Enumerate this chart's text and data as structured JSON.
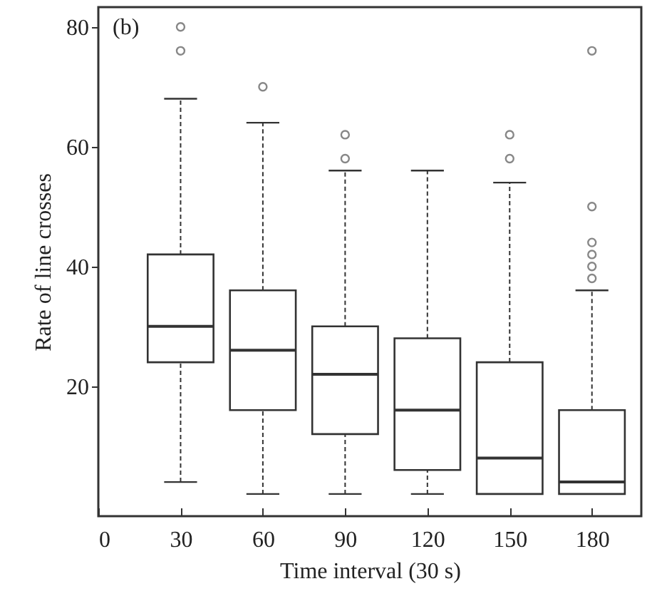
{
  "chart_data": {
    "type": "box",
    "xlabel": "Time interval (30 s)",
    "ylabel": "Rate of line crosses",
    "annotations": [
      "(b)"
    ],
    "x": [
      30,
      60,
      90,
      120,
      150,
      180
    ],
    "boxes": [
      {
        "low": 4,
        "q1": 24,
        "median": 30,
        "q3": 42,
        "high": 68,
        "outliers": [
          80,
          76
        ]
      },
      {
        "low": 2,
        "q1": 16,
        "median": 26,
        "q3": 36,
        "high": 64,
        "outliers": [
          70
        ]
      },
      {
        "low": 2,
        "q1": 12,
        "median": 22,
        "q3": 30,
        "high": 56,
        "outliers": [
          62,
          58
        ]
      },
      {
        "low": 2,
        "q1": 6,
        "median": 16,
        "q3": 28,
        "high": 56
      },
      {
        "low": 2,
        "q1": 2,
        "median": 8,
        "q3": 24,
        "high": 54,
        "outliers": [
          62,
          58
        ]
      },
      {
        "low": 2,
        "q1": 2,
        "median": 4,
        "q3": 16,
        "high": 36,
        "outliers": [
          76,
          50,
          44,
          42,
          40,
          38
        ]
      }
    ],
    "xlim": [
      0,
      198
    ],
    "xticks": [
      0,
      30,
      60,
      90,
      120,
      150,
      180
    ],
    "ylim": [
      -1.7,
      83.3
    ],
    "yticks": [
      20,
      40,
      60,
      80
    ],
    "grid": false
  }
}
